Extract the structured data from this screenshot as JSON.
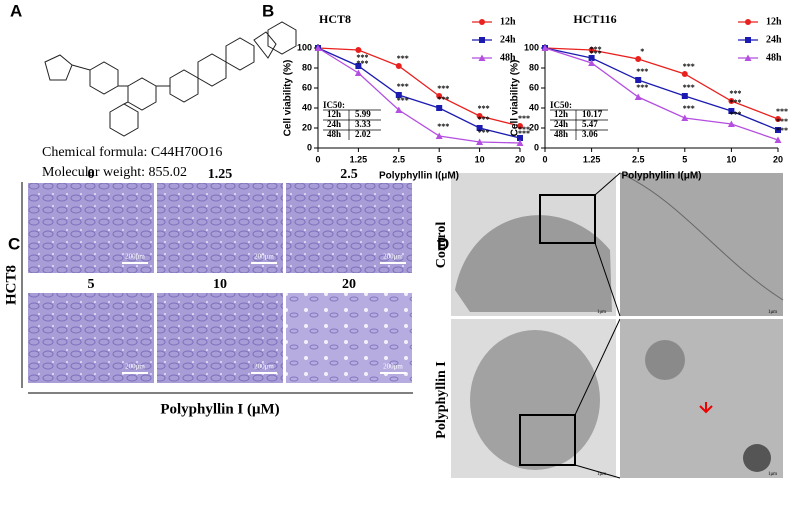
{
  "panels": {
    "a": "A",
    "b": "B",
    "c": "C",
    "d": "D"
  },
  "compound": {
    "formula": "Chemical formula: C44H70O16",
    "weight": "Molecular weight: 855.02"
  },
  "chart_data": [
    {
      "type": "line",
      "title": "HCT8",
      "x_label": "Polyphyllin I(μM)",
      "y_label": "Cell viability (%)",
      "categories": [
        "0",
        "1.25",
        "2.5",
        "5",
        "10",
        "20"
      ],
      "ylim": [
        0,
        100
      ],
      "yticks": [
        0,
        20,
        40,
        60,
        80,
        100
      ],
      "series": [
        {
          "name": "12h",
          "color": "#e8211f",
          "marker": "circle",
          "values": [
            100,
            98,
            82,
            52,
            32,
            22
          ],
          "significance": [
            null,
            null,
            "***",
            "***",
            "***",
            "***"
          ]
        },
        {
          "name": "24h",
          "color": "#1b1bb0",
          "marker": "square",
          "values": [
            100,
            82,
            53,
            40,
            20,
            10
          ],
          "significance": [
            null,
            "***",
            "***",
            "***",
            "***",
            "***"
          ]
        },
        {
          "name": "48h",
          "color": "#b44fe0",
          "marker": "triangle",
          "values": [
            100,
            75,
            38,
            12,
            6,
            5
          ],
          "significance": [
            null,
            "***",
            "***",
            "***",
            "***",
            "***"
          ]
        }
      ],
      "ic50": {
        "title": "IC50:",
        "rows": [
          [
            "12h",
            "5.99"
          ],
          [
            "24h",
            "3.33"
          ],
          [
            "48h",
            "2.02"
          ]
        ]
      }
    },
    {
      "type": "line",
      "title": "HCT116",
      "x_label": "Polyphyllin I(μM)",
      "y_label": "Cell viability (%)",
      "categories": [
        "0",
        "1.25",
        "2.5",
        "5",
        "10",
        "20"
      ],
      "ylim": [
        0,
        100
      ],
      "yticks": [
        0,
        20,
        40,
        60,
        80,
        100
      ],
      "series": [
        {
          "name": "12h",
          "color": "#e8211f",
          "marker": "circle",
          "values": [
            100,
            98,
            89,
            74,
            47,
            29
          ],
          "significance": [
            null,
            null,
            "*",
            "***",
            "***",
            "***"
          ]
        },
        {
          "name": "24h",
          "color": "#1b1bb0",
          "marker": "square",
          "values": [
            100,
            90,
            68,
            52,
            37,
            18
          ],
          "significance": [
            null,
            "***",
            "***",
            "***",
            "***",
            "***"
          ]
        },
        {
          "name": "48h",
          "color": "#b44fe0",
          "marker": "triangle",
          "values": [
            100,
            85,
            51,
            30,
            24,
            8
          ],
          "significance": [
            null,
            "***",
            "***",
            "***",
            "***",
            "***"
          ]
        }
      ],
      "ic50": {
        "title": "IC50:",
        "rows": [
          [
            "12h",
            "10.17"
          ],
          [
            "24h",
            "5.47"
          ],
          [
            "48h",
            "3.06"
          ]
        ]
      }
    }
  ],
  "microscopy": {
    "cell_line": "HCT8",
    "axis_title": "Polyphyllin I (μM)",
    "doses": [
      "0",
      "1.25",
      "2.5",
      "5",
      "10",
      "20"
    ],
    "scale_bar": "200μm"
  },
  "tem": {
    "rows": [
      "Control",
      "Polyphyllin I"
    ],
    "scale_bar": "1μm"
  }
}
